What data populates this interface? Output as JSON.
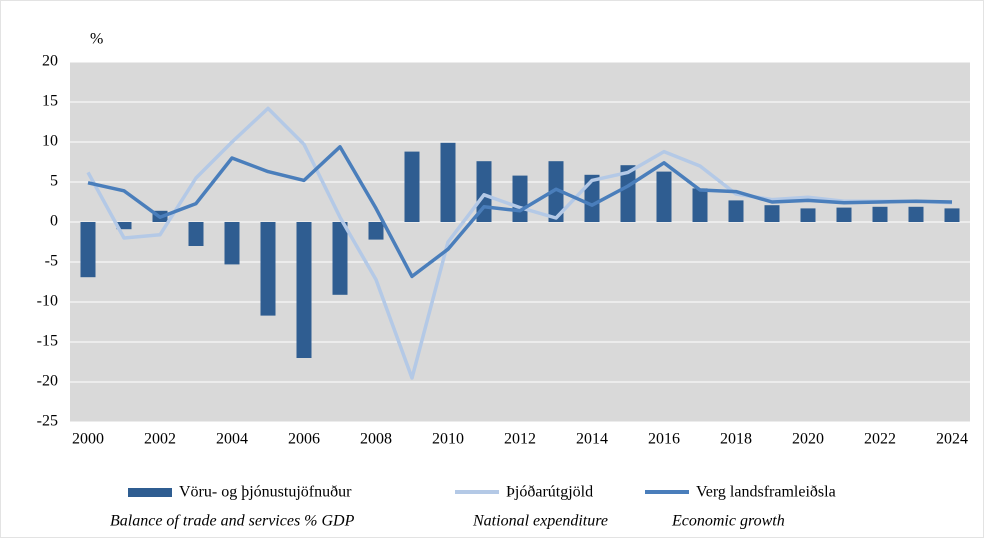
{
  "chart_data": {
    "type": "bar",
    "y_unit": "%",
    "categories": [
      "2000",
      null,
      "2002",
      null,
      "2004",
      null,
      "2006",
      null,
      "2008",
      null,
      "2010",
      null,
      "2012",
      null,
      "2014",
      null,
      "2016",
      null,
      "2018",
      null,
      "2020",
      null,
      "2022",
      null,
      "2024"
    ],
    "series": [
      {
        "name": "Vöru- og þjónustujöfnuður",
        "type": "bar",
        "color": "#2f5d91",
        "values": [
          -6.9,
          -0.9,
          1.4,
          -3,
          -5.3,
          -11.7,
          -17,
          -9.1,
          -2.2,
          8.8,
          9.9,
          7.6,
          5.8,
          7.6,
          5.9,
          7.1,
          6.3,
          4.2,
          2.7,
          2.1,
          1.7,
          1.8,
          1.9,
          1.9,
          1.7
        ]
      },
      {
        "name": "Þjóðarútgjöld",
        "type": "line",
        "color": "#b4c9e6",
        "values": [
          6.2,
          -2,
          -1.6,
          5.5,
          10,
          14.2,
          9.7,
          0.6,
          -7.2,
          -19.5,
          -2.5,
          3.4,
          1.8,
          0.5,
          5.2,
          6.2,
          8.8,
          7,
          3.5,
          2.8,
          3.1,
          2.6,
          2.6,
          2.6,
          2.4
        ]
      },
      {
        "name": "Verg landsframleiðsla",
        "type": "line",
        "color": "#4a7ebb",
        "values": [
          4.9,
          3.9,
          0.6,
          2.3,
          8.0,
          6.3,
          5.2,
          9.4,
          1.7,
          -6.8,
          -3.4,
          1.9,
          1.4,
          4.1,
          2.1,
          4.5,
          7.4,
          4.0,
          3.8,
          2.5,
          2.7,
          2.4,
          2.5,
          2.6,
          2.5
        ]
      }
    ],
    "legend_notes": [
      "Balance of trade and services % GDP",
      "National expenditure",
      "Economic growth"
    ],
    "ylim": [
      -25,
      20
    ],
    "yticks": [
      -25,
      -20,
      -15,
      -10,
      -5,
      0,
      5,
      10,
      15,
      20
    ],
    "grid": true
  }
}
